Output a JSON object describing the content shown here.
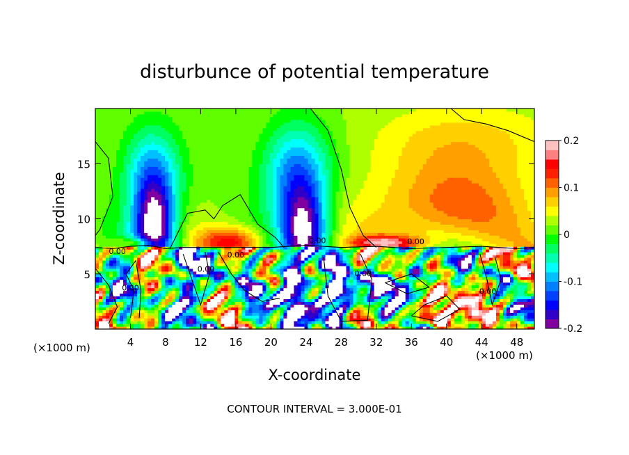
{
  "chart_data": {
    "type": "heatmap",
    "title": "disturbunce of potential temperature",
    "xlabel": "X-coordinate",
    "ylabel": "Z-coordinate",
    "x_unit_left": "(×1000 m)",
    "x_unit_right": "(×1000 m)",
    "xlim": [
      0,
      50
    ],
    "ylim": [
      0,
      20
    ],
    "xticks": [
      "4",
      "8",
      "12",
      "16",
      "20",
      "24",
      "28",
      "32",
      "36",
      "40",
      "44",
      "48"
    ],
    "yticks": [
      "5",
      "10",
      "15"
    ],
    "colorbar": {
      "min": -0.2,
      "max": 0.2,
      "ticks": [
        "0.2",
        "0.1",
        "0",
        "-0.1",
        "-0.2"
      ],
      "colors": [
        "#8000a0",
        "#3000c8",
        "#0000ff",
        "#0040ff",
        "#0080ff",
        "#00c0ff",
        "#00ffff",
        "#00ffb0",
        "#00ff60",
        "#00ff00",
        "#60ff00",
        "#b0ff00",
        "#ffff00",
        "#ffd000",
        "#ffa000",
        "#ff6000",
        "#ff2000",
        "#ff0000",
        "#ff8080",
        "#ffc0c0"
      ]
    },
    "contour_interval_text": "CONTOUR INTERVAL = 3.000E-01",
    "contour_labels": [
      "0.00",
      "0.00",
      "0.00",
      "0.00",
      "0.00",
      "0.00",
      "0.00",
      "0.00"
    ]
  }
}
